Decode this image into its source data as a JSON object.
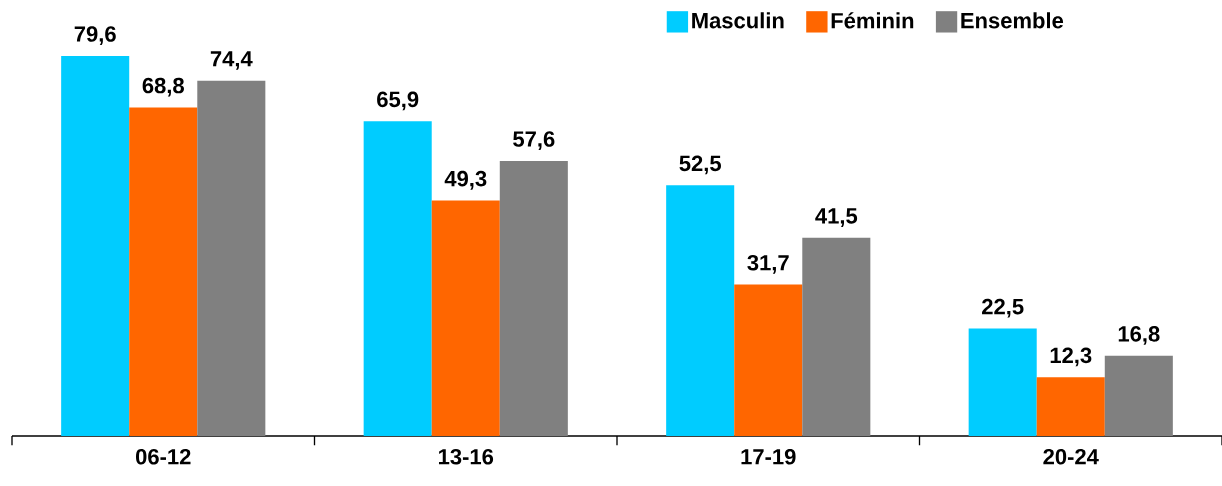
{
  "chart_data": {
    "type": "bar",
    "categories": [
      "06-12",
      "13-16",
      "17-19",
      "20-24"
    ],
    "series": [
      {
        "name": "Masculin",
        "color": "#00ccff",
        "values": [
          79.6,
          65.9,
          52.5,
          22.5
        ],
        "value_labels": [
          "79,6",
          "65,9",
          "52,5",
          "22,5"
        ]
      },
      {
        "name": "Féminin",
        "color": "#ff6600",
        "values": [
          68.8,
          49.3,
          31.7,
          12.3
        ],
        "value_labels": [
          "68,8",
          "49,3",
          "31,7",
          "12,3"
        ]
      },
      {
        "name": "Ensemble",
        "color": "#808080",
        "values": [
          74.4,
          57.6,
          41.5,
          16.8
        ],
        "value_labels": [
          "74,4",
          "57,6",
          "41,5",
          "16,8"
        ]
      }
    ],
    "legend": "top right"
  }
}
